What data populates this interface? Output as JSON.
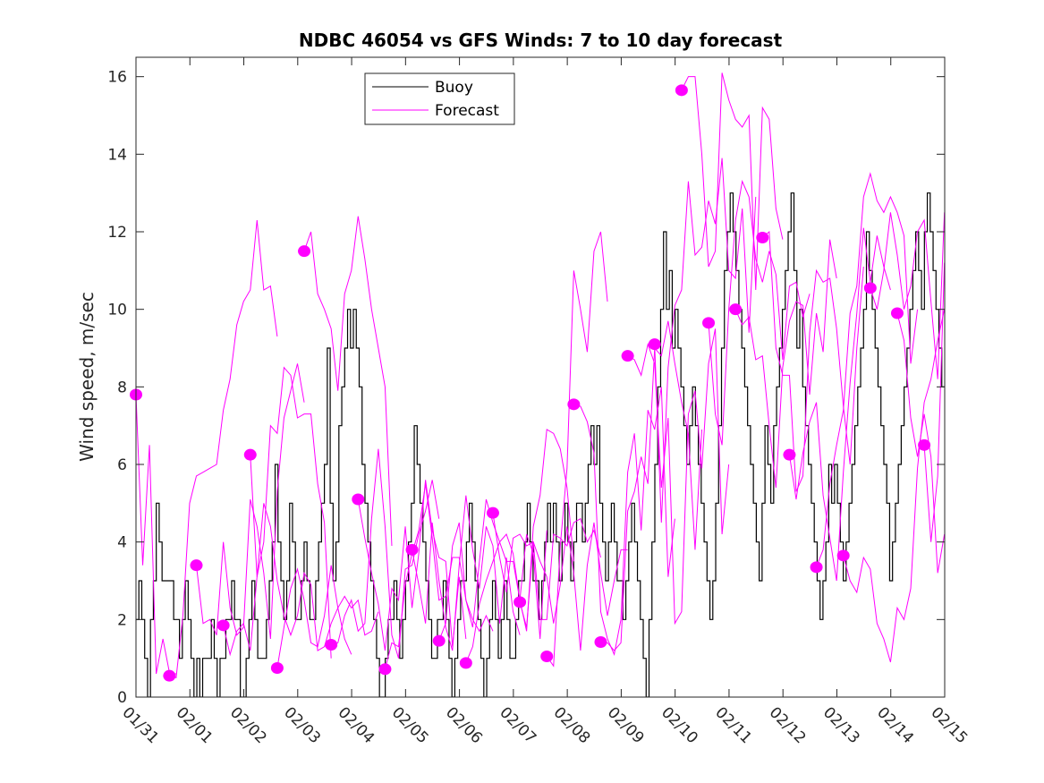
{
  "chart_data": {
    "type": "line",
    "title": "NDBC 46054 vs GFS Winds: 7 to 10 day forecast",
    "xlabel": "",
    "ylabel": "Wind speed, m/sec",
    "xlim_days": [
      0,
      15
    ],
    "ylim": [
      0,
      16.5
    ],
    "x_tick_labels": [
      "01/31",
      "02/01",
      "02/02",
      "02/03",
      "02/04",
      "02/05",
      "02/06",
      "02/07",
      "02/08",
      "02/09",
      "02/10",
      "02/11",
      "02/12",
      "02/13",
      "02/14",
      "02/15"
    ],
    "y_ticks": [
      0,
      2,
      4,
      6,
      8,
      10,
      12,
      14,
      16
    ],
    "grid": false,
    "legend": {
      "placement": "top-center",
      "entries": [
        {
          "label": "Buoy",
          "color": "#000000"
        },
        {
          "label": "Forecast",
          "color": "#ff00ff"
        }
      ]
    },
    "colors": {
      "buoy": "#000000",
      "forecast": "#ff00ff",
      "axis": "#262626"
    },
    "buoy": {
      "name": "Buoy",
      "x_step_days": 0.0833,
      "values": [
        2,
        3,
        2,
        1,
        0,
        2,
        3,
        5,
        4,
        3,
        3,
        3,
        3,
        2,
        2,
        1,
        2,
        3,
        2,
        1,
        0,
        1,
        0,
        1,
        1,
        1,
        2,
        1,
        0,
        1,
        1,
        2,
        2,
        3,
        2,
        2,
        0,
        0,
        1,
        2,
        3,
        2,
        1,
        1,
        1,
        2,
        3,
        4,
        6,
        4,
        3,
        2,
        3,
        5,
        4,
        2,
        2,
        3,
        4,
        3,
        2,
        2,
        3,
        4,
        5,
        6,
        9,
        5,
        3,
        4,
        7,
        8,
        9,
        10,
        9,
        10,
        9,
        8,
        6,
        5,
        4,
        3,
        2,
        1,
        0,
        0,
        1,
        2,
        2,
        3,
        2,
        1,
        2,
        3,
        4,
        5,
        7,
        6,
        5,
        4,
        3,
        2,
        1,
        1,
        2,
        2,
        3,
        2,
        1,
        0,
        1,
        2,
        3,
        3,
        4,
        5,
        4,
        3,
        2,
        1,
        0,
        1,
        2,
        3,
        2,
        1,
        2,
        3,
        2,
        1,
        1,
        2,
        3,
        3,
        4,
        5,
        4,
        3,
        3,
        2,
        3,
        4,
        5,
        4,
        5,
        4,
        3,
        4,
        5,
        4,
        3,
        4,
        5,
        5,
        4,
        5,
        6,
        7,
        6,
        7,
        5,
        4,
        3,
        4,
        5,
        4,
        3,
        3,
        2,
        3,
        4,
        5,
        4,
        3,
        2,
        1,
        0,
        2,
        4,
        6,
        8,
        10,
        12,
        10,
        11,
        9,
        10,
        9,
        8,
        7,
        6,
        7,
        8,
        7,
        6,
        5,
        4,
        3,
        2,
        3,
        5,
        7,
        9,
        11,
        12,
        13,
        12,
        11,
        10,
        9,
        8,
        7,
        6,
        5,
        4,
        3,
        5,
        7,
        6,
        5,
        7,
        8,
        9,
        10,
        11,
        12,
        13,
        11,
        9,
        10,
        8,
        7,
        6,
        5,
        4,
        3,
        2,
        3,
        4,
        6,
        5,
        6,
        5,
        4,
        3,
        4,
        5,
        6,
        7,
        8,
        9,
        10,
        12,
        11,
        10,
        9,
        8,
        7,
        6,
        5,
        3,
        4,
        5,
        6,
        7,
        8,
        9,
        10,
        11,
        12,
        11,
        10,
        12,
        13,
        12,
        11,
        10,
        9,
        8
      ],
      "note": "stepped integer-valued hourly buoy wind speed, approximate"
    },
    "forecast_runs": [
      {
        "start_day": 0.0,
        "values": [
          7.8,
          3.4,
          6.5,
          0.6,
          1.5,
          0.6,
          0.6
        ]
      },
      {
        "start_day": 0.62,
        "values": [
          0.55,
          0.5,
          2.1,
          5.0,
          5.7,
          5.8,
          5.9,
          6.0,
          7.4,
          8.2,
          9.6,
          10.2,
          10.5,
          12.3,
          10.5,
          10.6,
          9.3
        ]
      },
      {
        "start_day": 1.12,
        "values": [
          3.4,
          1.9,
          2.0,
          1.6,
          4.0,
          2.3,
          1.6,
          1.8,
          5.1,
          4.4,
          3.2,
          1.5,
          5.3,
          7.2,
          7.9,
          8.6,
          7.6
        ]
      },
      {
        "start_day": 1.62,
        "values": [
          1.85,
          1.1,
          1.7,
          1.9,
          1.2,
          3.1,
          4.0,
          7.0,
          6.8,
          8.5,
          8.3,
          7.2,
          7.3,
          7.3,
          5.5,
          4.5,
          1.0
        ]
      },
      {
        "start_day": 2.12,
        "values": [
          6.25,
          3.1,
          5.0,
          4.4,
          3.0,
          2.1,
          1.6,
          2.1,
          3.2,
          2.9,
          1.2,
          1.3,
          1.9,
          2.3,
          1.5,
          1.1
        ]
      },
      {
        "start_day": 2.62,
        "values": [
          0.75,
          1.8,
          2.8,
          3.3,
          2.5,
          1.4,
          1.3,
          2.1,
          3.4,
          2.3,
          2.6,
          2.3,
          2.5,
          1.6,
          1.7,
          2.2
        ]
      },
      {
        "start_day": 3.12,
        "values": [
          11.5,
          12.0,
          10.4,
          10.0,
          9.5,
          7.9,
          10.4,
          11.0,
          12.4,
          11.3,
          10.0,
          9.0,
          8.0,
          3.9
        ]
      },
      {
        "start_day": 3.62,
        "values": [
          1.35,
          1.4,
          2.1,
          2.5,
          1.7,
          1.9,
          4.6,
          6.4,
          4.4,
          1.6,
          1.0,
          3.3,
          3.4,
          4.2,
          4.8,
          5.6,
          4.6
        ]
      },
      {
        "start_day": 4.12,
        "values": [
          5.1,
          4.1,
          3.2,
          2.4,
          1.2,
          2.8,
          2.5,
          4.4,
          2.3,
          3.7,
          5.6,
          4.3,
          3.6,
          3.5,
          1.3,
          3.1,
          1.5
        ]
      },
      {
        "start_day": 4.62,
        "values": [
          0.72,
          1.4,
          1.3,
          2.9,
          3.7,
          4.3,
          5.5,
          4.1,
          2.5,
          2.6,
          3.6,
          3.6,
          2.5,
          2.0,
          1.7,
          2.1,
          1.7
        ]
      },
      {
        "start_day": 5.12,
        "values": [
          3.8,
          2.9,
          1.9,
          4.5,
          3.0,
          1.8,
          1.2,
          3.4,
          5.2,
          3.8,
          2.8,
          4.4,
          3.9,
          1.9,
          3.6,
          2.2,
          1.6
        ]
      },
      {
        "start_day": 5.62,
        "values": [
          1.45,
          1.9,
          3.9,
          4.5,
          2.5,
          1.8,
          3.5,
          5.1,
          4.5,
          4.0,
          3.5,
          3.5,
          2.5,
          4.2,
          3.7,
          1.5,
          4.3
        ]
      },
      {
        "start_day": 6.12,
        "values": [
          0.88,
          1.3,
          2.4,
          3.0,
          3.5,
          4.0,
          4.2,
          3.7,
          2.5,
          1.7,
          4.4,
          5.2,
          6.9,
          6.8,
          6.4,
          5.4,
          3.5
        ]
      },
      {
        "start_day": 6.62,
        "values": [
          4.75,
          3.6,
          2.7,
          4.1,
          4.2,
          3.9,
          4.0,
          2.0,
          2.0,
          4.2,
          4.1,
          3.9,
          4.5,
          4.6,
          4.0,
          4.3,
          3.6
        ]
      },
      {
        "start_day": 7.12,
        "values": [
          2.45,
          1.8,
          4.0,
          3.5,
          3.1,
          1.9,
          2.9,
          4.4,
          3.2,
          1.2,
          3.4,
          4.5,
          3.2,
          2.1,
          3.0,
          3.8,
          3.8
        ]
      },
      {
        "start_day": 7.62,
        "values": [
          1.05,
          0.8,
          3.9,
          5.9,
          11.0,
          10.0,
          8.9,
          11.5,
          12.0,
          10.2
        ]
      },
      {
        "start_day": 8.12,
        "values": [
          7.55,
          7.5,
          7.1,
          6.3,
          2.2,
          1.5,
          1.1,
          2.0,
          5.8,
          6.8,
          4.3,
          7.4,
          6.9,
          8.0,
          3.1,
          4.6
        ]
      },
      {
        "start_day": 8.62,
        "values": [
          1.42,
          1.4,
          1.2,
          1.4,
          4.8,
          5.3,
          6.2,
          5.5,
          9.0,
          8.8,
          9.7,
          8.6,
          7.6,
          6.8,
          3.8,
          6.9
        ]
      },
      {
        "start_day": 9.12,
        "values": [
          8.8,
          8.7,
          8.3,
          9.1,
          8.6,
          5.4,
          7.2,
          1.9,
          2.2,
          7.3,
          7.9,
          5.9,
          8.6,
          9.5,
          4.2,
          6.0
        ]
      },
      {
        "start_day": 9.62,
        "values": [
          9.1,
          4.5,
          8.5,
          10.1,
          10.5,
          13.3,
          11.4,
          11.6,
          12.8,
          12.2,
          13.9,
          11.0,
          10.8,
          12.6,
          9.4,
          12.9
        ]
      },
      {
        "start_day": 10.12,
        "values": [
          15.65,
          16.0,
          16.0,
          14.0,
          11.1,
          11.5,
          16.1,
          15.4,
          14.9,
          14.7,
          15.0,
          10.5,
          15.2,
          14.9,
          12.6,
          11.8
        ]
      },
      {
        "start_day": 10.62,
        "values": [
          9.65,
          7.3,
          6.5,
          10.0,
          12.3,
          13.3,
          12.9,
          11.3,
          10.7,
          11.5,
          10.9,
          8.7,
          10.6,
          10.7,
          9.8,
          10.4
        ]
      },
      {
        "start_day": 11.12,
        "values": [
          10.0,
          9.6,
          9.8,
          8.7,
          8.8,
          7.0,
          5.4,
          8.5,
          9.7,
          10.2,
          10.1,
          7.8,
          9.9,
          8.9,
          11.8,
          10.8
        ]
      },
      {
        "start_day": 11.62,
        "values": [
          11.85,
          12.0,
          9.0,
          8.3,
          8.3,
          5.3,
          5.7,
          9.4,
          11.0,
          10.7,
          10.8,
          9.5,
          7.5,
          6.0,
          9.0,
          11.1
        ]
      },
      {
        "start_day": 12.12,
        "values": [
          6.25,
          5.1,
          6.3,
          7.1,
          7.6,
          5.2,
          4.1,
          3.0,
          5.8,
          8.1,
          9.9,
          12.1,
          10.7,
          11.9,
          11.1,
          10.5
        ]
      },
      {
        "start_day": 12.62,
        "values": [
          3.35,
          3.8,
          5.5,
          6.5,
          7.4,
          9.9,
          10.6,
          12.9,
          13.5,
          12.8,
          12.5,
          12.9,
          12.5,
          11.9,
          8.6,
          10.0
        ]
      },
      {
        "start_day": 13.12,
        "values": [
          3.65,
          3.0,
          2.7,
          3.6,
          3.3,
          1.9,
          1.5,
          0.9,
          2.3,
          2.0,
          2.8,
          5.9,
          7.6,
          8.2,
          9.2,
          10.0
        ]
      },
      {
        "start_day": 13.62,
        "values": [
          10.55,
          10.0,
          11.0,
          12.5,
          11.4,
          10.0,
          10.6,
          12.0,
          12.3,
          10.2,
          8.2,
          12.5,
          11.0,
          9.7,
          5.0,
          3.9
        ]
      },
      {
        "start_day": 14.12,
        "values": [
          9.9,
          9.2,
          7.2,
          6.2,
          7.3,
          6.2,
          3.2,
          4.2
        ]
      },
      {
        "start_day": 14.62,
        "values": [
          6.5,
          4.0,
          5.7,
          11.2
        ]
      }
    ],
    "forecast_step_days": 0.125,
    "forecast_markers": [
      {
        "day": 0.0,
        "value": 7.8
      },
      {
        "day": 0.62,
        "value": 0.55
      },
      {
        "day": 1.12,
        "value": 3.4
      },
      {
        "day": 1.62,
        "value": 1.85
      },
      {
        "day": 2.12,
        "value": 6.25
      },
      {
        "day": 2.62,
        "value": 0.75
      },
      {
        "day": 3.12,
        "value": 11.5
      },
      {
        "day": 3.62,
        "value": 1.35
      },
      {
        "day": 4.12,
        "value": 5.1
      },
      {
        "day": 4.62,
        "value": 0.72
      },
      {
        "day": 5.12,
        "value": 3.8
      },
      {
        "day": 5.62,
        "value": 1.45
      },
      {
        "day": 6.12,
        "value": 0.88
      },
      {
        "day": 6.62,
        "value": 4.75
      },
      {
        "day": 7.12,
        "value": 2.45
      },
      {
        "day": 7.62,
        "value": 1.05
      },
      {
        "day": 8.12,
        "value": 7.55
      },
      {
        "day": 8.62,
        "value": 1.42
      },
      {
        "day": 9.12,
        "value": 8.8
      },
      {
        "day": 9.62,
        "value": 9.1
      },
      {
        "day": 10.12,
        "value": 15.65
      },
      {
        "day": 10.62,
        "value": 9.65
      },
      {
        "day": 11.12,
        "value": 10.0
      },
      {
        "day": 11.62,
        "value": 11.85
      },
      {
        "day": 12.12,
        "value": 6.25
      },
      {
        "day": 12.62,
        "value": 3.35
      },
      {
        "day": 13.12,
        "value": 3.65
      },
      {
        "day": 13.62,
        "value": 10.55
      },
      {
        "day": 14.12,
        "value": 9.9
      },
      {
        "day": 14.62,
        "value": 6.5
      }
    ]
  }
}
